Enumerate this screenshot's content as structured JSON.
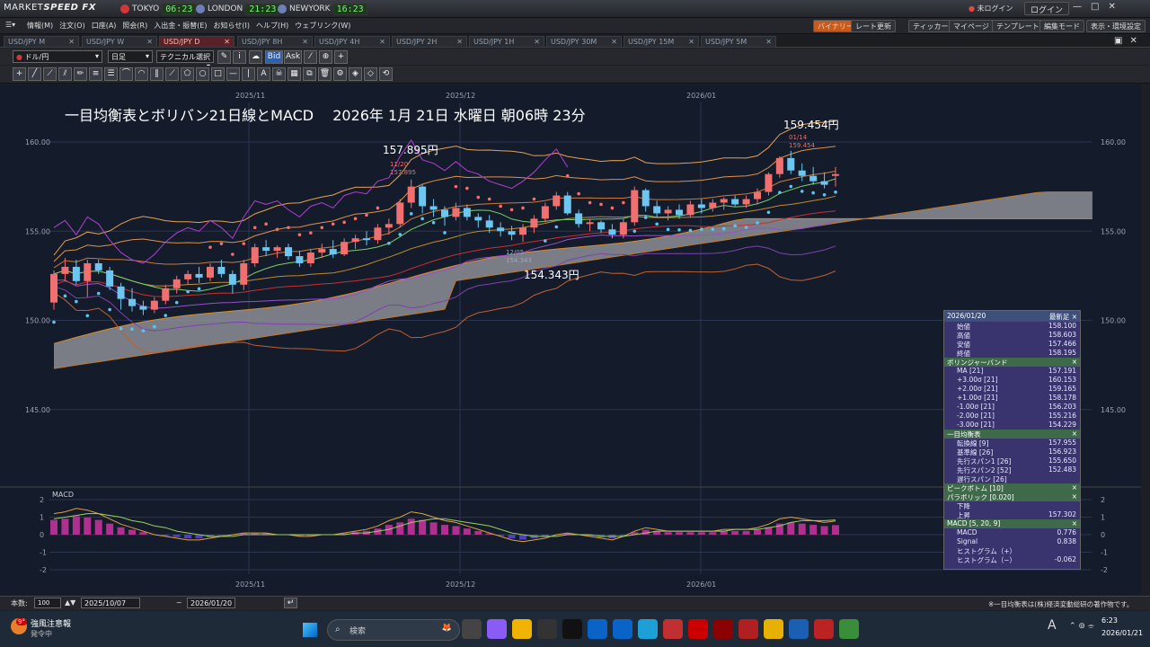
{
  "app": {
    "logo_main": "MARKET",
    "logo_sub": "SPEED FX"
  },
  "clocks": [
    {
      "city": "TOKYO",
      "time": "06:23",
      "color": "#d43535"
    },
    {
      "city": "LONDON",
      "time": "21:23",
      "color": "#6f7fb8"
    },
    {
      "city": "NEWYORK",
      "time": "16:23",
      "color": "#6f7fb8"
    }
  ],
  "login": {
    "status": "未ログイン",
    "button": "ログイン"
  },
  "menu": [
    "情報(M)",
    "注文(O)",
    "口座(A)",
    "照会(R)",
    "入出金・振替(E)",
    "お知らせ(I)",
    "ヘルプ(H)",
    "ウェブリンク(W)"
  ],
  "right_buttons": [
    "バイナリー",
    "レート更新",
    "ティッカー",
    "マイページ",
    "テンプレート",
    "編集モード",
    "表示・環境設定"
  ],
  "tabs": [
    "USD/JPY M",
    "USD/JPY W",
    "USD/JPY D",
    "USD/JPY 8H",
    "USD/JPY 4H",
    "USD/JPY 2H",
    "USD/JPY 1H",
    "USD/JPY 30M",
    "USD/JPY 15M",
    "USD/JPY 5M"
  ],
  "toolbar": {
    "pair": "ドル/円",
    "period": "日足",
    "tech": "テクニカル選択",
    "bid": "Bid",
    "ask": "Ask"
  },
  "chart_title": "一目均衡表とボリバン21日線とMACD　 2026年 1月 21日 水曜日 朝06時 23分",
  "x_ticks": [
    "2025/11",
    "2025/12",
    "2026/01"
  ],
  "y_ticks": [
    "160.00",
    "155.00",
    "150.00",
    "145.00"
  ],
  "macd_ticks": [
    "2",
    "1",
    "0",
    "-1",
    "-2"
  ],
  "annotations": {
    "high1": "157.895円",
    "high1_date": "11/20",
    "high1_val": "157.895",
    "low": "154.343円",
    "low_date": "12/05",
    "low_val": "154.343",
    "high2": "159.454円",
    "high2_date": "01/14",
    "high2_val": "159.454"
  },
  "macd_label": "MACD",
  "panel": {
    "date": "2026/01/20",
    "type": "最新足",
    "ohlc": [
      [
        "始値",
        "158.100"
      ],
      [
        "高値",
        "158.603"
      ],
      [
        "安値",
        "157.466"
      ],
      [
        "終値",
        "158.195"
      ]
    ],
    "bb_title": "ボリンジャーバンド",
    "bb": [
      [
        "MA [21]",
        "157.191"
      ],
      [
        "+3.00σ [21]",
        "160.153"
      ],
      [
        "+2.00σ [21]",
        "159.165"
      ],
      [
        "+1.00σ [21]",
        "158.178"
      ],
      [
        "-1.00σ [21]",
        "156.203"
      ],
      [
        "-2.00σ [21]",
        "155.216"
      ],
      [
        "-3.00σ [21]",
        "154.229"
      ]
    ],
    "ichi_title": "一目均衡表",
    "ichi": [
      [
        "転換線 [9]",
        "157.955"
      ],
      [
        "基準線 [26]",
        "156.923"
      ],
      [
        "先行スパン1 [26]",
        "155.650"
      ],
      [
        "先行スパン2 [52]",
        "152.483"
      ],
      [
        "遅行スパン [26]",
        ""
      ]
    ],
    "pb_title": "ピークボトム [10]",
    "sar_title": "パラボリック [0.020]",
    "sar": [
      [
        "下降",
        ""
      ],
      [
        "上昇",
        "157.302"
      ]
    ],
    "macd_title": "MACD [5, 20, 9]",
    "macd": [
      [
        "MACD",
        "0.776"
      ],
      [
        "Signal",
        "0.838"
      ],
      [
        "ヒストグラム（+）",
        ""
      ],
      [
        "ヒストグラム（−）",
        "-0.062"
      ]
    ]
  },
  "footer": {
    "count_label": "本数:",
    "count": "100",
    "from": "2025/10/07",
    "to": "2026/01/20",
    "copyright": "※一目均衡表は(株)経済変動総研の著作物です。"
  },
  "taskbar": {
    "weather_temp": "9°",
    "weather_title": "強風注意報",
    "weather_sub": "発令中",
    "search": "検索",
    "time": "6:23",
    "date": "2026/01/21"
  },
  "chart_data": {
    "type": "line",
    "title": "一目均衡表とボリバン21日線とMACD　 2026年 1月 21日 水曜日 朝06時 23分",
    "ylim": [
      143,
      162
    ],
    "candles": [
      [
        151.0,
        152.8,
        150.6,
        152.6
      ],
      [
        152.6,
        153.5,
        152.2,
        153.0
      ],
      [
        153.0,
        153.4,
        152.0,
        152.2
      ],
      [
        152.2,
        153.4,
        151.3,
        153.2
      ],
      [
        153.2,
        153.4,
        152.6,
        152.8
      ],
      [
        152.8,
        153.0,
        151.7,
        151.9
      ],
      [
        151.9,
        152.1,
        150.6,
        151.2
      ],
      [
        151.2,
        151.8,
        150.5,
        150.8
      ],
      [
        150.8,
        151.1,
        150.3,
        150.6
      ],
      [
        150.6,
        151.3,
        150.4,
        151.1
      ],
      [
        151.1,
        152.0,
        150.9,
        151.8
      ],
      [
        151.8,
        152.5,
        151.5,
        152.3
      ],
      [
        152.3,
        152.8,
        152.0,
        152.6
      ],
      [
        152.6,
        153.0,
        152.1,
        152.4
      ],
      [
        152.4,
        153.2,
        152.2,
        153.0
      ],
      [
        153.0,
        153.4,
        152.4,
        152.6
      ],
      [
        152.6,
        152.8,
        151.5,
        152.0
      ],
      [
        152.0,
        153.4,
        151.7,
        153.2
      ],
      [
        153.2,
        154.3,
        153.0,
        154.1
      ],
      [
        154.1,
        154.5,
        153.6,
        153.9
      ],
      [
        153.9,
        154.2,
        153.5,
        154.1
      ],
      [
        154.1,
        154.3,
        153.4,
        153.6
      ],
      [
        153.6,
        153.9,
        153.0,
        153.2
      ],
      [
        153.2,
        154.0,
        153.0,
        153.8
      ],
      [
        153.8,
        154.3,
        153.5,
        154.0
      ],
      [
        154.0,
        154.5,
        153.5,
        153.7
      ],
      [
        153.7,
        154.6,
        153.6,
        154.4
      ],
      [
        154.4,
        154.8,
        154.0,
        154.6
      ],
      [
        154.6,
        155.0,
        154.2,
        154.5
      ],
      [
        154.5,
        155.4,
        154.3,
        155.2
      ],
      [
        155.2,
        155.7,
        154.8,
        155.4
      ],
      [
        155.4,
        156.8,
        155.2,
        156.6
      ],
      [
        156.6,
        157.9,
        156.3,
        157.5
      ],
      [
        157.5,
        157.6,
        156.0,
        156.4
      ],
      [
        156.4,
        156.8,
        155.8,
        156.2
      ],
      [
        156.2,
        156.4,
        155.3,
        155.8
      ],
      [
        155.8,
        156.6,
        155.6,
        156.3
      ],
      [
        156.3,
        156.5,
        155.6,
        155.8
      ],
      [
        155.8,
        156.0,
        155.2,
        155.6
      ],
      [
        155.6,
        155.9,
        154.9,
        155.2
      ],
      [
        155.2,
        155.5,
        154.7,
        155.0
      ],
      [
        155.0,
        155.3,
        154.5,
        154.8
      ],
      [
        154.8,
        155.4,
        154.4,
        155.2
      ],
      [
        155.2,
        155.9,
        154.9,
        155.7
      ],
      [
        155.7,
        156.6,
        155.5,
        156.4
      ],
      [
        156.4,
        157.2,
        156.2,
        157.0
      ],
      [
        157.0,
        157.2,
        155.9,
        156.0
      ],
      [
        156.0,
        156.2,
        155.2,
        155.4
      ],
      [
        155.4,
        155.7,
        155.0,
        155.5
      ],
      [
        155.5,
        155.6,
        154.9,
        155.1
      ],
      [
        155.1,
        155.4,
        154.6,
        154.8
      ],
      [
        154.8,
        155.7,
        154.6,
        155.5
      ],
      [
        155.5,
        157.5,
        155.3,
        157.3
      ],
      [
        157.3,
        157.4,
        156.1,
        156.4
      ],
      [
        156.4,
        156.7,
        155.8,
        156.0
      ],
      [
        156.0,
        156.4,
        155.6,
        156.2
      ],
      [
        156.2,
        156.5,
        155.7,
        155.9
      ],
      [
        155.9,
        156.7,
        155.8,
        156.5
      ],
      [
        156.5,
        156.8,
        156.0,
        156.3
      ],
      [
        156.3,
        156.8,
        156.1,
        156.6
      ],
      [
        156.6,
        156.9,
        156.2,
        156.8
      ],
      [
        156.8,
        157.0,
        156.4,
        156.5
      ],
      [
        156.5,
        157.0,
        156.3,
        156.8
      ],
      [
        156.8,
        157.4,
        156.5,
        157.2
      ],
      [
        157.2,
        158.3,
        157.0,
        158.2
      ],
      [
        158.2,
        159.2,
        158.0,
        159.1
      ],
      [
        159.1,
        159.5,
        158.2,
        158.4
      ],
      [
        158.4,
        158.8,
        157.8,
        158.1
      ],
      [
        158.1,
        158.6,
        157.6,
        157.8
      ],
      [
        157.8,
        158.3,
        157.4,
        157.6
      ],
      [
        158.1,
        158.6,
        157.5,
        158.2
      ]
    ],
    "macd": [
      1.2,
      1.3,
      1.5,
      1.4,
      1.2,
      0.9,
      0.6,
      0.4,
      0.2,
      0.0,
      -0.1,
      -0.2,
      -0.3,
      -0.3,
      -0.2,
      -0.1,
      0.0,
      0.1,
      0.1,
      0.1,
      0.0,
      0.0,
      -0.1,
      -0.1,
      0.0,
      0.0,
      0.1,
      0.2,
      0.3,
      0.5,
      0.8,
      1.0,
      1.3,
      1.2,
      1.0,
      0.8,
      0.7,
      0.5,
      0.3,
      0.1,
      -0.1,
      -0.3,
      -0.4,
      -0.3,
      -0.2,
      0.0,
      0.1,
      0.0,
      -0.1,
      -0.2,
      -0.3,
      -0.1,
      0.2,
      0.4,
      0.3,
      0.2,
      0.2,
      0.2,
      0.2,
      0.2,
      0.3,
      0.3,
      0.3,
      0.4,
      0.6,
      0.9,
      1.0,
      0.9,
      0.8,
      0.7,
      0.78
    ],
    "signal": [
      0.9,
      1.0,
      1.1,
      1.2,
      1.2,
      1.1,
      1.0,
      0.8,
      0.7,
      0.5,
      0.4,
      0.2,
      0.1,
      0.0,
      -0.1,
      -0.1,
      -0.1,
      0.0,
      0.0,
      0.0,
      0.0,
      0.0,
      0.0,
      0.0,
      0.0,
      0.0,
      0.0,
      0.1,
      0.1,
      0.2,
      0.3,
      0.5,
      0.7,
      0.8,
      0.9,
      0.9,
      0.8,
      0.7,
      0.6,
      0.5,
      0.3,
      0.1,
      0.0,
      -0.1,
      -0.1,
      -0.1,
      0.0,
      0.0,
      0.0,
      -0.1,
      -0.1,
      -0.1,
      0.0,
      0.1,
      0.2,
      0.2,
      0.2,
      0.2,
      0.2,
      0.2,
      0.2,
      0.3,
      0.3,
      0.3,
      0.4,
      0.5,
      0.7,
      0.8,
      0.8,
      0.8,
      0.84
    ]
  }
}
